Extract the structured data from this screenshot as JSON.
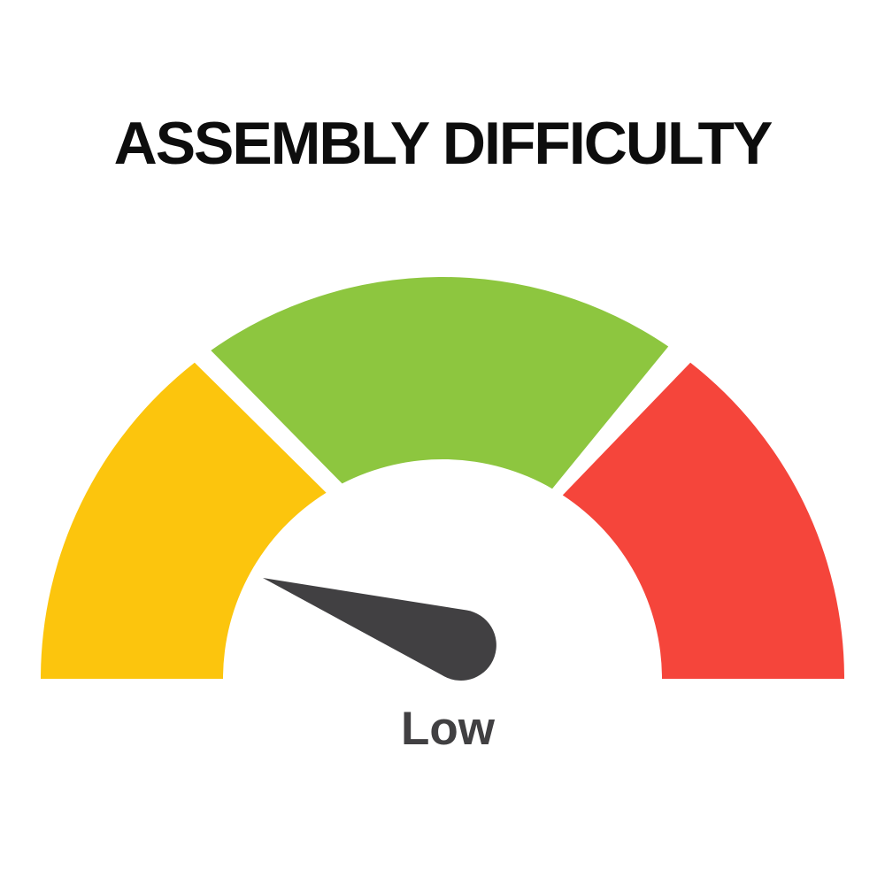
{
  "page": {
    "background_color": "#ffffff"
  },
  "chart_data": {
    "type": "gauge",
    "title": "ASSEMBLY DIFFICULTY",
    "value_label": "Low",
    "arc_span_deg": 180,
    "center": [
      500,
      767
    ],
    "outer_radius": 454,
    "inner_radius": 248,
    "segments": [
      {
        "name": "yellow",
        "color": "#FCC50D",
        "outer_start_deg": 180,
        "outer_end_deg": 128.1,
        "inner_start_deg": 180,
        "inner_end_deg": 122.0
      },
      {
        "name": "green",
        "color": "#8DC63F",
        "outer_start_deg": 125.2,
        "outer_end_deg": 55.8,
        "inner_start_deg": 117.2,
        "inner_end_deg": 60.0
      },
      {
        "name": "red",
        "color": "#F5453B",
        "outer_start_deg": 51.9,
        "outer_end_deg": 0,
        "inner_start_deg": 56.8,
        "inner_end_deg": 0
      }
    ],
    "needle": {
      "color": "#414042",
      "tip": [
        297,
        653
      ],
      "hub_center": [
        521,
        729
      ],
      "hub_radius": 40,
      "points_to": "Low"
    },
    "title_color": "#0d0d0d",
    "value_label_color": "#414042"
  }
}
